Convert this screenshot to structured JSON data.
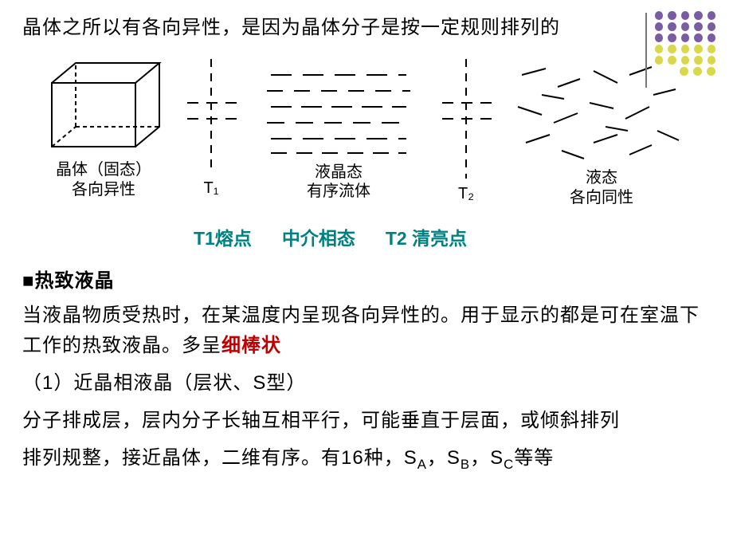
{
  "intro": "晶体之所以有各向异性，是因为晶体分子是按一定规则排列的",
  "decor": {
    "dot_colors_rows": [
      [
        "#7a5ca3",
        "#7a5ca3",
        "#7a5ca3",
        "#7a5ca3",
        "#7a5ca3"
      ],
      [
        "#7a5ca3",
        "#7a5ca3",
        "#7a5ca3",
        "#7a5ca3",
        "#7a5ca3"
      ],
      [
        "#7a5ca3",
        "#7a5ca3",
        "#7a5ca3",
        "#7a5ca3",
        "#7a5ca3"
      ],
      [
        "#d8d84a",
        "#d8d84a",
        "#d8d84a",
        "#d8d84a",
        "#d8d84a"
      ],
      [
        "#d8d84a",
        "#d8d84a",
        "#d8d84a",
        "#d8d84a",
        "#d8d84a"
      ],
      [
        "#d8d84a",
        "#d8d84a",
        "#d8d84a"
      ]
    ]
  },
  "figure": {
    "stage1_label_l1": "晶体（固态）",
    "stage1_label_l2": "各向异性",
    "t1_label": "T₁",
    "stage2_label_l1": "液晶态",
    "stage2_label_l2": "有序流体",
    "t2_label": "T₂",
    "stage3_label_l1": "液态",
    "stage3_label_l2": "各向同性",
    "stroke": "#000000"
  },
  "phase": {
    "t1": "T1熔点",
    "mid": "中介相态",
    "t2": "T2 清亮点",
    "color": "#008080"
  },
  "thermotropic": {
    "heading_prefix": "■",
    "heading": "热致液晶",
    "para_plain": "当液晶物质受热时，在某温度内呈现各向异性的。用于显示的都是可在室温下工作的热致液晶。多呈",
    "para_red": "细棒状",
    "item1_title": "（1）近晶相液晶（层状、S型）",
    "item1_p1": "分子排成层，层内分子长轴互相平行，可能垂直于层面，或倾斜排列",
    "item1_p2_prefix": "排列规整，接近晶体，二维有序。有16种，S",
    "item1_p2_a": "A",
    "item1_p2_sep1": "，S",
    "item1_p2_b": "B",
    "item1_p2_sep2": "，S",
    "item1_p2_c": "C",
    "item1_p2_suffix": "等等"
  }
}
